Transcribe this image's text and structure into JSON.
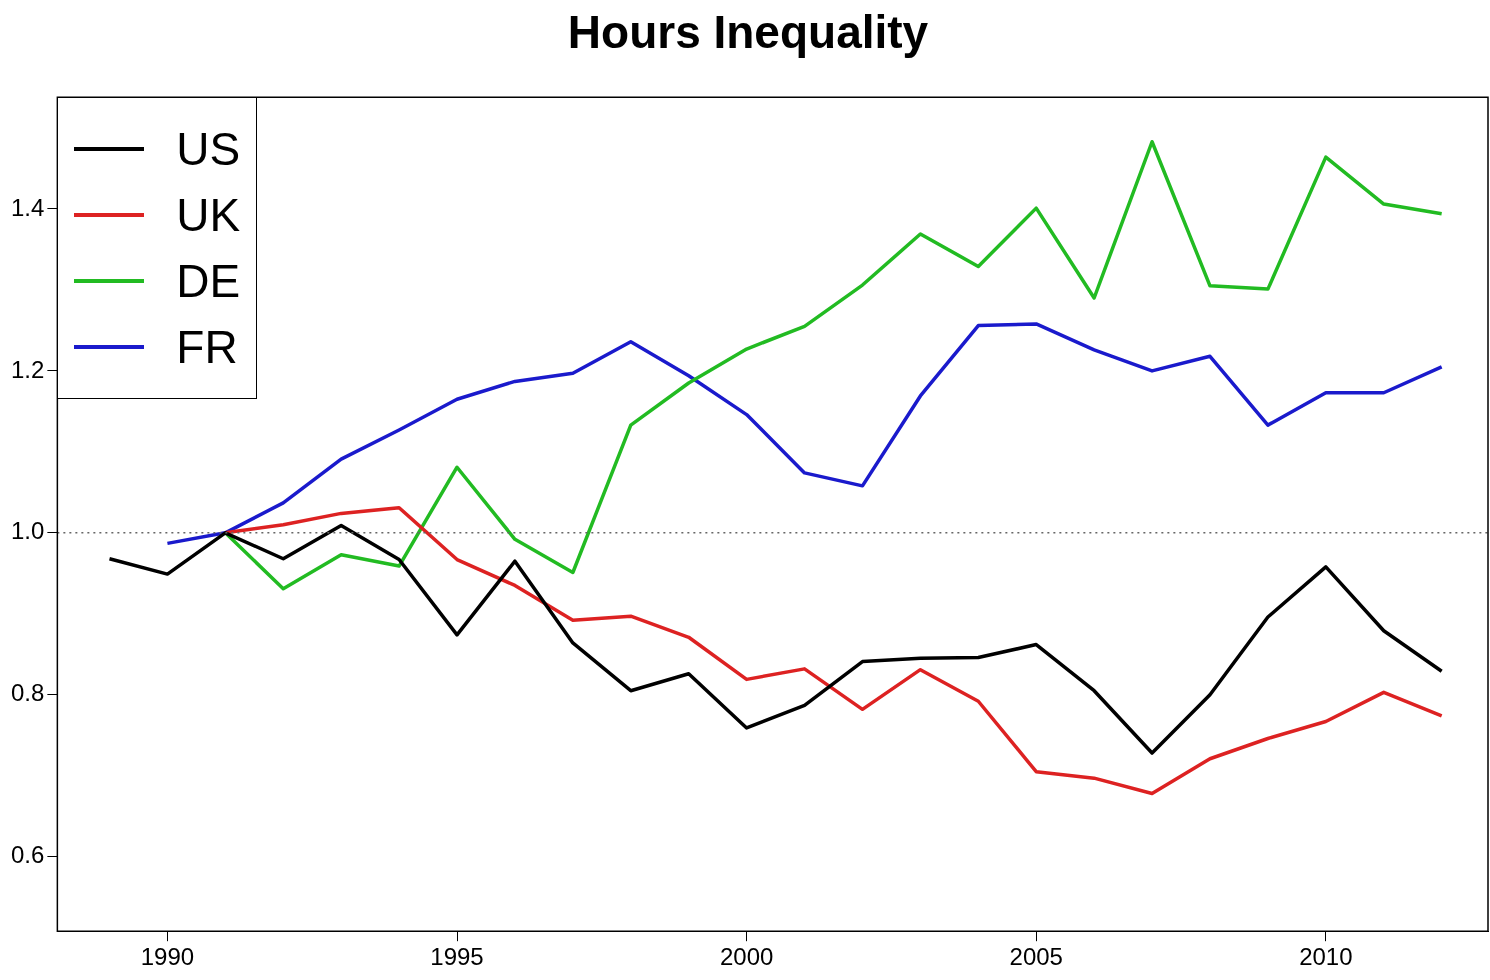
{
  "chart_data": {
    "type": "line",
    "title": "Hours Inequality",
    "xlim": [
      1988.1,
      2012.8
    ],
    "ylim": [
      0.508,
      1.538
    ],
    "xticks": [
      1990,
      1995,
      2000,
      2005,
      2010
    ],
    "yticks": [
      {
        "value": 0.6,
        "label": "0.6"
      },
      {
        "value": 0.8,
        "label": "0.8"
      },
      {
        "value": 1.0,
        "label": "1.0"
      },
      {
        "value": 1.2,
        "label": "1.2"
      },
      {
        "value": 1.4,
        "label": "1.4"
      }
    ],
    "grid": false,
    "legend": "top left",
    "marker": "none",
    "line_style": "solid",
    "ref_lines": [
      {
        "axis": "y",
        "value": 1.0,
        "line_style": "dotted",
        "color": "#666666"
      }
    ],
    "series": [
      {
        "name": "US",
        "color": "#000000",
        "x": [
          1989,
          1990,
          1991,
          1992,
          1993,
          1994,
          1995,
          1996,
          1997,
          1998,
          1999,
          2000,
          2001,
          2002,
          2003,
          2004,
          2005,
          2006,
          2007,
          2008,
          2009,
          2010,
          2011,
          2012
        ],
        "values": [
          0.968,
          0.949,
          1.0,
          0.968,
          1.009,
          0.967,
          0.874,
          0.965,
          0.864,
          0.805,
          0.826,
          0.759,
          0.787,
          0.841,
          0.845,
          0.846,
          0.862,
          0.805,
          0.728,
          0.8,
          0.896,
          0.958,
          0.879,
          0.829
        ]
      },
      {
        "name": "UK",
        "color": "#dd2222",
        "x": [
          1991,
          1992,
          1993,
          1994,
          1995,
          1996,
          1997,
          1998,
          1999,
          2000,
          2001,
          2002,
          2003,
          2004,
          2005,
          2006,
          2007,
          2008,
          2009,
          2010,
          2011,
          2012
        ],
        "values": [
          1.0,
          1.01,
          1.024,
          1.031,
          0.967,
          0.935,
          0.892,
          0.897,
          0.871,
          0.819,
          0.832,
          0.782,
          0.831,
          0.792,
          0.705,
          0.697,
          0.678,
          0.721,
          0.746,
          0.767,
          0.803,
          0.774
        ]
      },
      {
        "name": "DE",
        "color": "#22bb22",
        "x": [
          1991,
          1992,
          1993,
          1994,
          1995,
          1996,
          1997,
          1998,
          1999,
          2000,
          2001,
          2002,
          2003,
          2004,
          2005,
          2006,
          2007,
          2008,
          2009,
          2010,
          2011,
          2012
        ],
        "values": [
          1.0,
          0.931,
          0.973,
          0.959,
          1.081,
          0.992,
          0.951,
          1.133,
          1.185,
          1.227,
          1.255,
          1.306,
          1.369,
          1.329,
          1.401,
          1.29,
          1.483,
          1.305,
          1.301,
          1.464,
          1.406,
          1.394
        ]
      },
      {
        "name": "FR",
        "color": "#1a1acc",
        "x": [
          1990,
          1991,
          1992,
          1993,
          1994,
          1995,
          1996,
          1997,
          1998,
          1999,
          2000,
          2001,
          2002,
          2003,
          2004,
          2005,
          2006,
          2007,
          2008,
          2009,
          2010,
          2011,
          2012
        ],
        "values": [
          0.987,
          1.0,
          1.037,
          1.091,
          1.127,
          1.165,
          1.187,
          1.197,
          1.236,
          1.194,
          1.146,
          1.074,
          1.058,
          1.169,
          1.256,
          1.258,
          1.226,
          1.2,
          1.218,
          1.133,
          1.173,
          1.173,
          1.205
        ]
      }
    ]
  }
}
